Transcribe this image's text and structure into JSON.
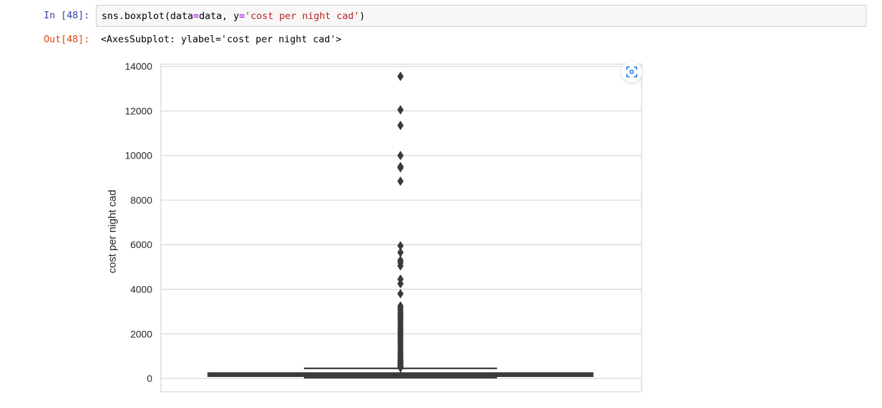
{
  "input_cell": {
    "prompt": "In [48]:",
    "code": {
      "part1": "sns.boxplot(data",
      "op1": "=",
      "part2": "data, y",
      "op2": "=",
      "str": "'cost per night cad'",
      "part3": ")"
    }
  },
  "output_cell": {
    "prompt": "Out[48]:",
    "repr": "<AxesSubplot: ylabel='cost per night cad'>"
  },
  "toolbar": {
    "expand_icon": "expand-image-icon"
  },
  "colors": {
    "box": "#3a3a3a",
    "grid": "#d6d6d6",
    "in_prompt": "#303f9f",
    "out_prompt": "#d84315",
    "string": "#ba2121",
    "operator": "#aa22ff"
  },
  "chart_data": {
    "type": "boxplot",
    "xlabel": "",
    "ylabel": "cost per night cad",
    "ylim": [
      -600,
      14100
    ],
    "yticks": [
      0,
      2000,
      4000,
      6000,
      8000,
      10000,
      12000,
      14000
    ],
    "ytick_labels": [
      "0",
      "2000",
      "4000",
      "6000",
      "8000",
      "10000",
      "12000",
      "14000"
    ],
    "grid": true,
    "box": {
      "min": 30,
      "q1": 120,
      "median": 170,
      "q3": 220,
      "max": 450
    },
    "outliers": [
      13550,
      12050,
      11350,
      10000,
      9500,
      9450,
      8850,
      5950,
      5650,
      5300,
      5200,
      5050,
      4450,
      4250,
      3800,
      3250,
      3150,
      3050,
      2950,
      2850,
      2750,
      2650,
      2550,
      2450,
      2350,
      2250,
      2150,
      2050,
      1950,
      1850,
      1750,
      1650,
      1550,
      1450,
      1350,
      1250,
      1150,
      1050,
      950,
      870,
      800,
      740,
      680,
      620,
      570,
      520,
      480
    ]
  }
}
